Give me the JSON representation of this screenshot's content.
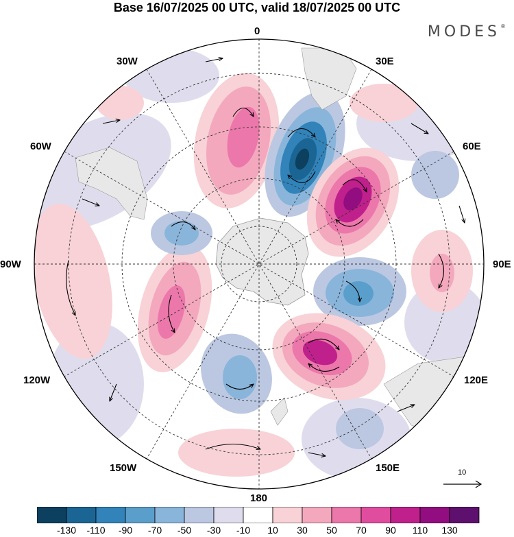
{
  "title": "Base 16/07/2025 00 UTC, valid 18/07/2025 00 UTC",
  "brand": "MODES",
  "brand_mark": "®",
  "longitude_labels": {
    "top": "0",
    "e30": "30E",
    "e60": "60E",
    "e90": "90E",
    "e120": "120E",
    "e150": "150E",
    "bottom": "180",
    "w150": "150W",
    "w120": "120W",
    "w90": "90W",
    "w60": "60W",
    "w30": "30W"
  },
  "reference_vector": {
    "label": "10"
  },
  "colorbar": {
    "colors": [
      "#0d3f5e",
      "#1a6593",
      "#3183b9",
      "#5a9fcb",
      "#8ab5db",
      "#bcc8e2",
      "#dfdded",
      "#ffffff",
      "#f8d2d6",
      "#f3a8bd",
      "#ec77aa",
      "#e04d9e",
      "#c0208c",
      "#920d7f",
      "#5e106e"
    ],
    "tick_labels": [
      "-130",
      "-110",
      "-90",
      "-70",
      "-50",
      "-30",
      "-10",
      "10",
      "30",
      "50",
      "70",
      "90",
      "110",
      "130"
    ]
  },
  "chart_data": {
    "type": "polar-stereographic-map",
    "projection": "south-polar-stereographic",
    "field": "shaded anomaly with wind vectors",
    "shading_levels": [
      -130,
      -110,
      -90,
      -70,
      -50,
      -30,
      -10,
      10,
      30,
      50,
      70,
      90,
      110,
      130
    ],
    "anomaly_centers": [
      {
        "sign": "negative",
        "near_lon": "10E",
        "peak": "< -130"
      },
      {
        "sign": "positive",
        "near_lon": "45E",
        "peak": "> 110"
      },
      {
        "sign": "negative",
        "near_lon": "100E",
        "peak": "-90"
      },
      {
        "sign": "positive",
        "near_lon": "140E",
        "peak": "> 90"
      },
      {
        "sign": "negative",
        "near_lon": "170W",
        "peak": "-70"
      },
      {
        "sign": "positive",
        "near_lon": "120W",
        "peak": "70"
      },
      {
        "sign": "negative",
        "near_lon": "70W",
        "peak": "-70"
      },
      {
        "sign": "positive",
        "near_lon": "15W",
        "peak": "70"
      },
      {
        "sign": "positive",
        "near_lon": "85E",
        "peak": "50"
      }
    ]
  }
}
